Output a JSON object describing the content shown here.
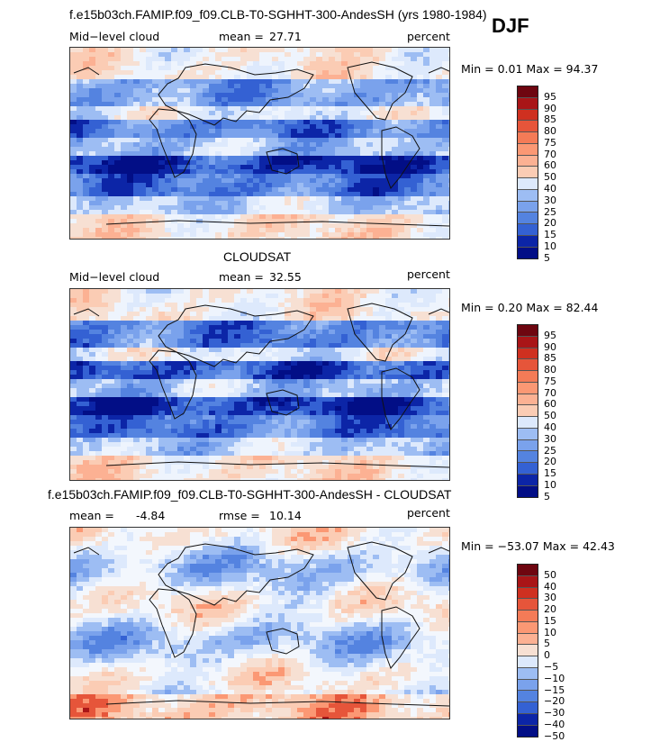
{
  "season": "DJF",
  "colors": {
    "pos": [
      "#f7e0d3",
      "#fbccb4",
      "#fcb193",
      "#fb9874",
      "#f47b57",
      "#e6553a",
      "#cf3020",
      "#a91517",
      "#6e0610"
    ],
    "neg": [
      "#dde9fc",
      "#bed4f8",
      "#9dbdf3",
      "#7aa2ec",
      "#5483e0",
      "#3461d3",
      "#1a3fc0",
      "#0c25a7",
      "#020e86"
    ]
  },
  "panels": [
    {
      "title": "f.e15b03ch.FAMIP.f09_f09.CLB-T0-SGHHT-300-AndesSH (yrs 1980-1984)",
      "left_label": "Mid−level cloud",
      "stat_label": "mean =",
      "stat_value": "27.71",
      "stat2_label": "",
      "stat2_value": "",
      "units": "percent",
      "minmax": "Min =   0.01 Max =  94.37",
      "colorbar": [
        "95",
        "90",
        "85",
        "80",
        "75",
        "70",
        "60",
        "50",
        "40",
        "30",
        "25",
        "20",
        "15",
        "10",
        "5"
      ]
    },
    {
      "title": "CLOUDSAT",
      "left_label": "Mid−level cloud",
      "stat_label": "mean =",
      "stat_value": "32.55",
      "stat2_label": "",
      "stat2_value": "",
      "units": "percent",
      "minmax": "Min =   0.20 Max =  82.44",
      "colorbar": [
        "95",
        "90",
        "85",
        "80",
        "75",
        "70",
        "60",
        "50",
        "40",
        "30",
        "25",
        "20",
        "15",
        "10",
        "5"
      ]
    },
    {
      "title": "f.e15b03ch.FAMIP.f09_f09.CLB-T0-SGHHT-300-AndesSH - CLOUDSAT",
      "left_label": "",
      "stat_label": "mean =",
      "stat_value": "-4.84",
      "stat2_label": "rmse =",
      "stat2_value": "10.14",
      "units": "percent",
      "minmax": "Min = −53.07 Max =  42.43",
      "colorbar": [
        "50",
        "40",
        "30",
        "20",
        "15",
        "10",
        "5",
        "0",
        "−5",
        "−10",
        "−15",
        "−20",
        "−30",
        "−40",
        "−50"
      ]
    }
  ]
}
